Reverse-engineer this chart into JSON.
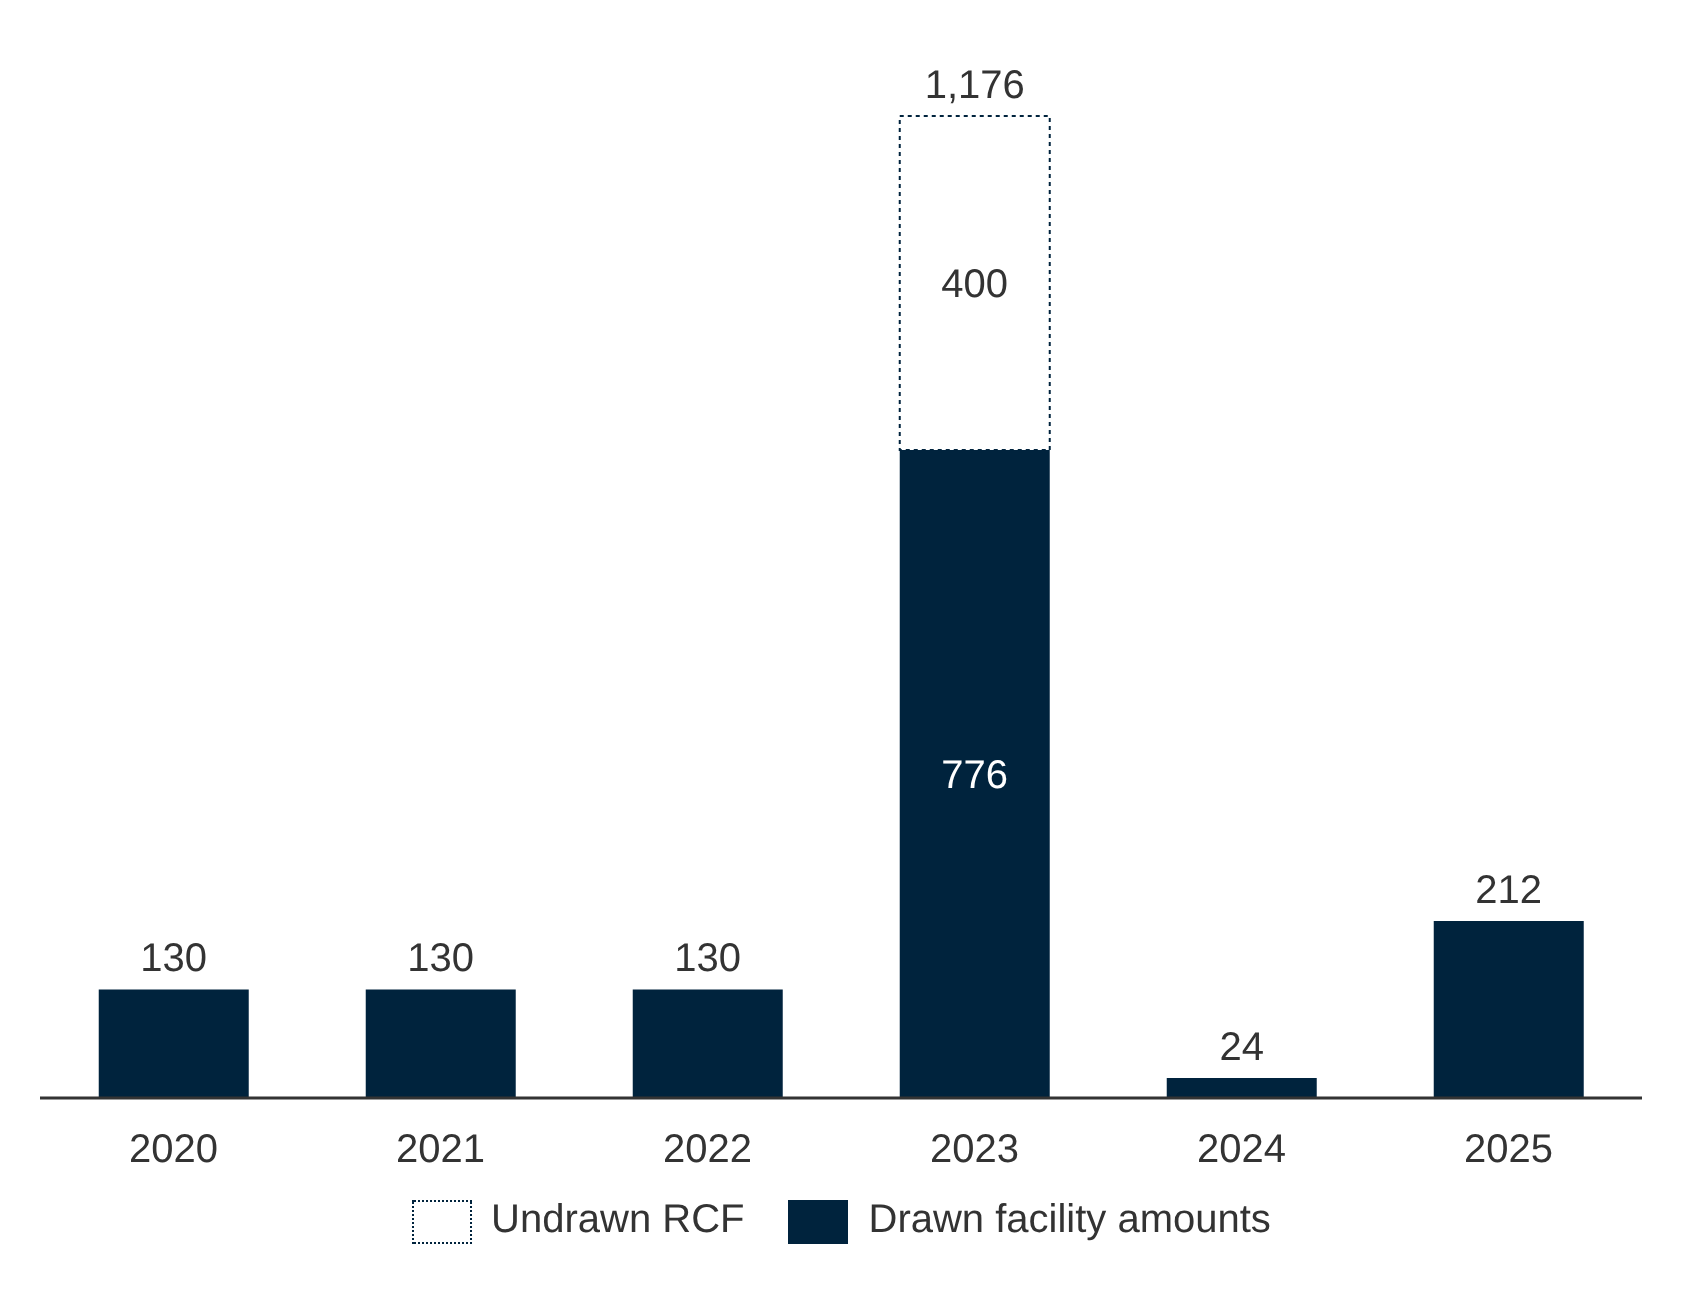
{
  "chart_data": {
    "type": "bar",
    "stacked": true,
    "categories": [
      "2020",
      "2021",
      "2022",
      "2023",
      "2024",
      "2025"
    ],
    "series": [
      {
        "name": "Drawn facility amounts",
        "color": "#00233d",
        "values": [
          130,
          130,
          130,
          776,
          24,
          212
        ]
      },
      {
        "name": "Undrawn RCF",
        "color": "#ffffff",
        "line_style": "dotted",
        "values": [
          null,
          null,
          null,
          400,
          null,
          null
        ]
      }
    ],
    "totals": [
      null,
      null,
      null,
      "1,176",
      null,
      null
    ],
    "data_labels": true,
    "legend": "bottom",
    "grid": false
  }
}
